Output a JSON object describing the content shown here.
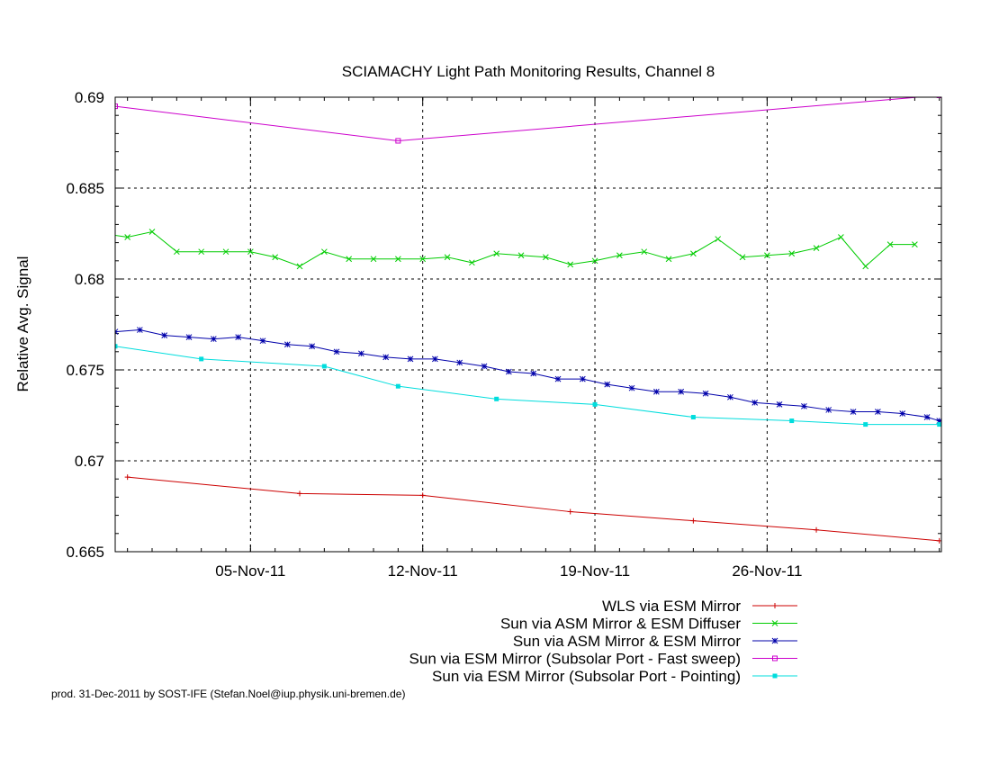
{
  "chart_data": {
    "type": "line",
    "title": "SCIAMACHY Light Path Monitoring Results, Channel 8",
    "xlabel": "",
    "ylabel": "Relative Avg. Signal",
    "x_type": "date",
    "xlim": [
      "2011-10-30T12:00",
      "2011-12-03T02:00"
    ],
    "ylim": [
      0.665,
      0.69
    ],
    "x_ticks": [
      {
        "date": "2011-11-05",
        "label": "05-Nov-11"
      },
      {
        "date": "2011-11-12",
        "label": "12-Nov-11"
      },
      {
        "date": "2011-11-19",
        "label": "19-Nov-11"
      },
      {
        "date": "2011-11-26",
        "label": "26-Nov-11"
      }
    ],
    "y_ticks": [
      {
        "value": 0.665,
        "label": "0.665"
      },
      {
        "value": 0.67,
        "label": "0.67"
      },
      {
        "value": 0.675,
        "label": "0.675"
      },
      {
        "value": 0.68,
        "label": "0.68"
      },
      {
        "value": 0.685,
        "label": "0.685"
      },
      {
        "value": 0.69,
        "label": "0.69"
      }
    ],
    "grid": true,
    "legend_position": "below-right",
    "series": [
      {
        "name": "WLS via ESM Mirror",
        "color": "#cc0000",
        "marker": "plus",
        "x": [
          "2011-10-31",
          "2011-11-07",
          "2011-11-12",
          "2011-11-18",
          "2011-11-23",
          "2011-11-28",
          "2011-12-03"
        ],
        "y": [
          0.6691,
          0.6682,
          0.6681,
          0.6672,
          0.6667,
          0.6662,
          0.6656
        ]
      },
      {
        "name": "Sun via ASM Mirror & ESM Diffuser",
        "color": "#00cc00",
        "marker": "x",
        "x": [
          "2011-10-30",
          "2011-10-31",
          "2011-11-01",
          "2011-11-02",
          "2011-11-03",
          "2011-11-04",
          "2011-11-05",
          "2011-11-06",
          "2011-11-07",
          "2011-11-08",
          "2011-11-09",
          "2011-11-10",
          "2011-11-11",
          "2011-11-12",
          "2011-11-13",
          "2011-11-14",
          "2011-11-15",
          "2011-11-16",
          "2011-11-17",
          "2011-11-18",
          "2011-11-19",
          "2011-11-20",
          "2011-11-21",
          "2011-11-22",
          "2011-11-23",
          "2011-11-24",
          "2011-11-25",
          "2011-11-26",
          "2011-11-27",
          "2011-11-28",
          "2011-11-29",
          "2011-11-30",
          "2011-12-01",
          "2011-12-02"
        ],
        "y": [
          0.6825,
          0.6823,
          0.6826,
          0.6815,
          0.6815,
          0.6815,
          0.6815,
          0.6812,
          0.6807,
          0.6815,
          0.6811,
          0.6811,
          0.6811,
          0.6811,
          0.6812,
          0.6809,
          0.6814,
          0.6813,
          0.6812,
          0.6808,
          0.681,
          0.6813,
          0.6815,
          0.6811,
          0.6814,
          0.6822,
          0.6812,
          0.6813,
          0.6814,
          0.6817,
          0.6823,
          0.6807,
          0.6819,
          0.6819
        ]
      },
      {
        "name": "Sun via ASM Mirror & ESM Mirror",
        "color": "#0000aa",
        "marker": "star",
        "x": [
          "2011-10-30T12:00",
          "2011-10-31T12:00",
          "2011-11-01T12:00",
          "2011-11-02T12:00",
          "2011-11-03T12:00",
          "2011-11-04T12:00",
          "2011-11-05T12:00",
          "2011-11-06T12:00",
          "2011-11-07T12:00",
          "2011-11-08T12:00",
          "2011-11-09T12:00",
          "2011-11-10T12:00",
          "2011-11-11T12:00",
          "2011-11-12T12:00",
          "2011-11-13T12:00",
          "2011-11-14T12:00",
          "2011-11-15T12:00",
          "2011-11-16T12:00",
          "2011-11-17T12:00",
          "2011-11-18T12:00",
          "2011-11-19T12:00",
          "2011-11-20T12:00",
          "2011-11-21T12:00",
          "2011-11-22T12:00",
          "2011-11-23T12:00",
          "2011-11-24T12:00",
          "2011-11-25T12:00",
          "2011-11-26T12:00",
          "2011-11-27T12:00",
          "2011-11-28T12:00",
          "2011-11-29T12:00",
          "2011-11-30T12:00",
          "2011-12-01T12:00",
          "2011-12-02T12:00",
          "2011-12-03T00:00"
        ],
        "y": [
          0.6771,
          0.6772,
          0.6769,
          0.6768,
          0.6767,
          0.6768,
          0.6766,
          0.6764,
          0.6763,
          0.676,
          0.6759,
          0.6757,
          0.6756,
          0.6756,
          0.6754,
          0.6752,
          0.6749,
          0.6748,
          0.6745,
          0.6745,
          0.6742,
          0.674,
          0.6738,
          0.6738,
          0.6737,
          0.6735,
          0.6732,
          0.6731,
          0.673,
          0.6728,
          0.6727,
          0.6727,
          0.6726,
          0.6724,
          0.6722
        ]
      },
      {
        "name": "Sun via ESM Mirror (Subsolar Port - Fast sweep)",
        "color": "#cc00cc",
        "marker": "square",
        "x": [
          "2011-10-30T12:00",
          "2011-11-11",
          "2011-12-03"
        ],
        "y": [
          0.6895,
          0.6876,
          0.6901
        ]
      },
      {
        "name": "Sun via ESM Mirror (Subsolar Port - Pointing)",
        "color": "#00dddd",
        "marker": "filled-square",
        "x": [
          "2011-10-30T12:00",
          "2011-11-03",
          "2011-11-08",
          "2011-11-11",
          "2011-11-15",
          "2011-11-19",
          "2011-11-23",
          "2011-11-27",
          "2011-11-30",
          "2011-12-03"
        ],
        "y": [
          0.6763,
          0.6756,
          0.6752,
          0.6741,
          0.6734,
          0.6731,
          0.6724,
          0.6722,
          0.672,
          0.672
        ]
      }
    ]
  },
  "footer": {
    "credit": "prod. 31-Dec-2011 by SOST-IFE (Stefan.Noel@iup.physik.uni-bremen.de)"
  }
}
